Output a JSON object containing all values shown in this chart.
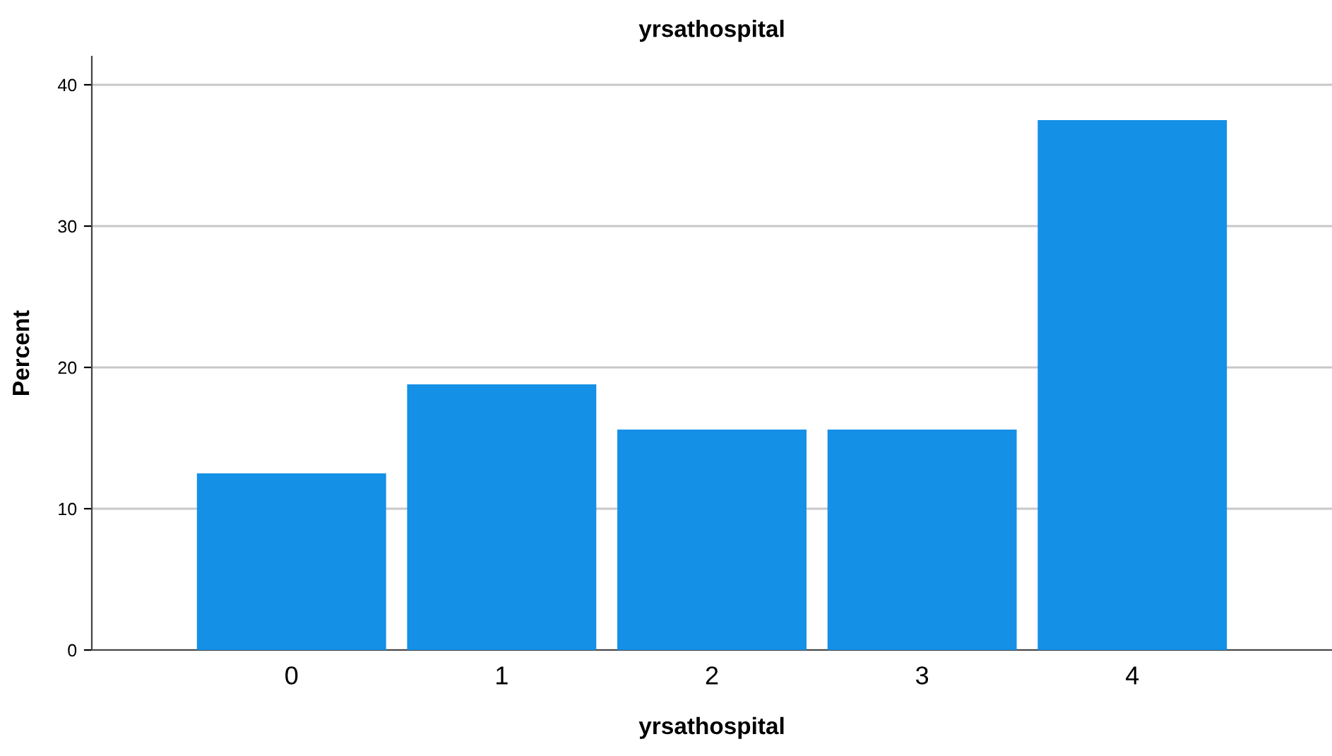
{
  "chart_data": {
    "type": "bar",
    "title": "yrsathospital",
    "xlabel": "yrsathospital",
    "ylabel": "Percent",
    "categories": [
      "0",
      "1",
      "2",
      "3",
      "4"
    ],
    "values": [
      12.5,
      18.8,
      15.6,
      15.6,
      37.5
    ],
    "color": "#1490e6",
    "ylim": [
      0,
      42
    ],
    "yticks": [
      0,
      10,
      20,
      30,
      40
    ],
    "grid": "y"
  }
}
